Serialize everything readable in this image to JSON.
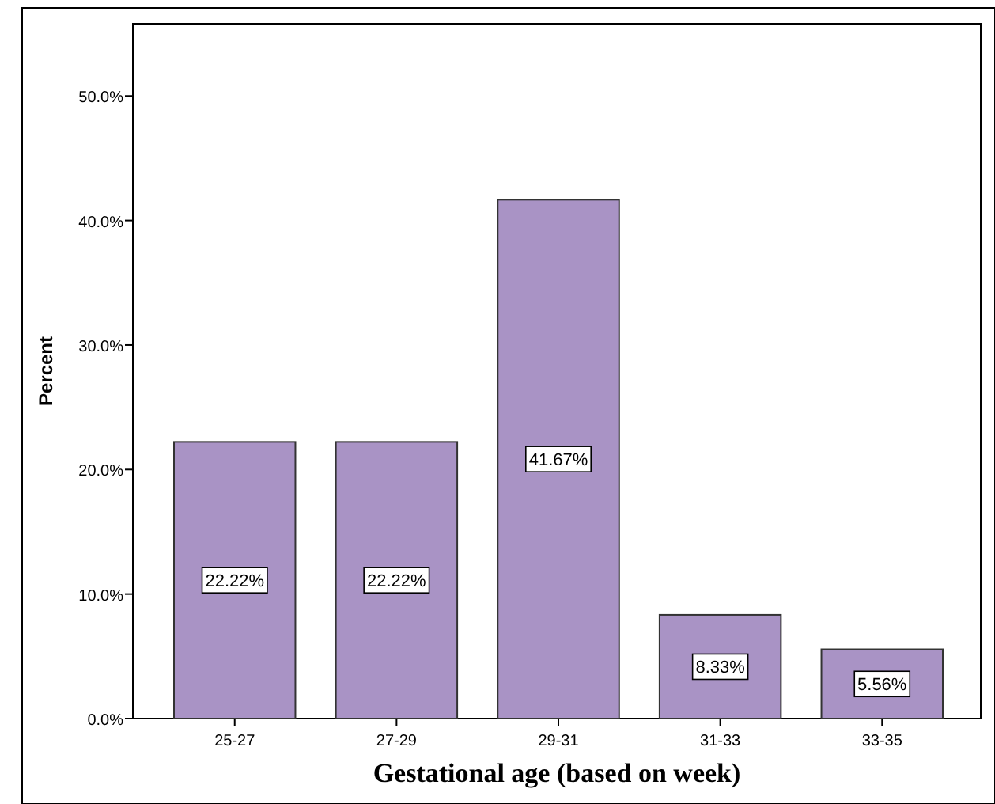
{
  "chart_data": {
    "type": "bar",
    "xlabel": "Gestational age (based on week)",
    "ylabel": "Percent",
    "categories": [
      "25-27",
      "27-29",
      "29-31",
      "31-33",
      "33-35"
    ],
    "values": [
      22.22,
      22.22,
      41.67,
      8.33,
      5.56
    ],
    "value_labels": [
      "22.22%",
      "22.22%",
      "41.67%",
      "8.33%",
      "5.56%"
    ],
    "color": "#a993c5",
    "ylim": [
      0,
      55.8
    ],
    "yticks": [
      {
        "value": 0,
        "label": "0.0%"
      },
      {
        "value": 10,
        "label": "10.0%"
      },
      {
        "value": 20,
        "label": "20.0%"
      },
      {
        "value": 30,
        "label": "30.0%"
      },
      {
        "value": 40,
        "label": "40.0%"
      },
      {
        "value": 50,
        "label": "50.0%"
      }
    ],
    "grid": false
  }
}
